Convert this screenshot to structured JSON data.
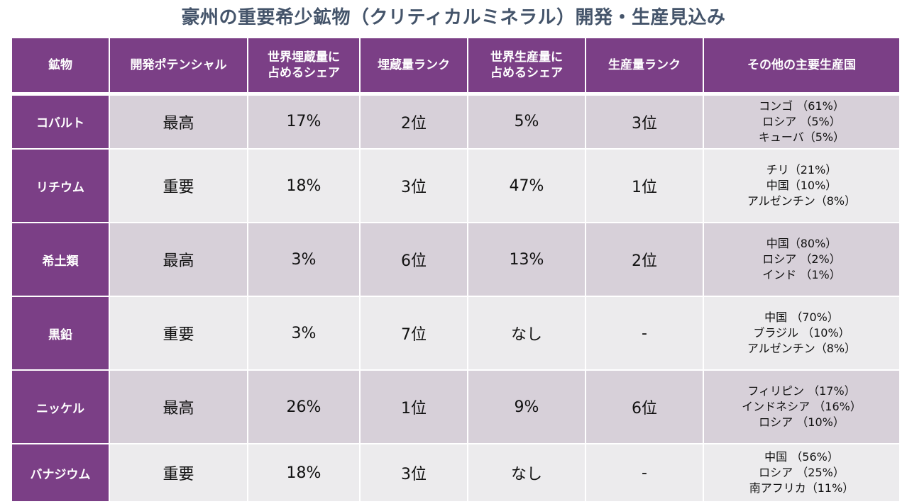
{
  "title": "豪州の重要希少鉱物（クリティカルミネラル）開発・生産見込み",
  "headers": {
    "mineral": "鉱物",
    "potential": "開発ポテンシャル",
    "reserve_share": [
      "世界埋蔵量に",
      "占めるシェア"
    ],
    "reserve_rank": "埋蔵量ランク",
    "production_share": [
      "世界生産量に",
      "占めるシェア"
    ],
    "production_rank": "生産量ランク",
    "others": "その他の主要生産国"
  },
  "rows": [
    {
      "mineral": "コバルト",
      "potential": "最高",
      "reserve_share": "17%",
      "reserve_rank": "2位",
      "production_share": "5%",
      "production_rank": "3位",
      "others": [
        "コンゴ （61%）",
        "ロシア （5%）",
        "キューバ（5%）"
      ]
    },
    {
      "mineral": "リチウム",
      "potential": "重要",
      "reserve_share": "18%",
      "reserve_rank": "3位",
      "production_share": "47%",
      "production_rank": "1位",
      "others": [
        "チリ（21%）",
        "中国（10%）",
        "アルゼンチン（8%）"
      ]
    },
    {
      "mineral": "希土類",
      "potential": "最高",
      "reserve_share": "3%",
      "reserve_rank": "6位",
      "production_share": "13%",
      "production_rank": "2位",
      "others": [
        "中国（80%）",
        "ロシア （2%）",
        "インド （1%）"
      ]
    },
    {
      "mineral": "黒鉛",
      "potential": "重要",
      "reserve_share": "3%",
      "reserve_rank": "7位",
      "production_share": "なし",
      "production_rank": "-",
      "others": [
        "中国 （70%）",
        "ブラジル （10%）",
        "アルゼンチン（8%）"
      ]
    },
    {
      "mineral": "ニッケル",
      "potential": "最高",
      "reserve_share": "26%",
      "reserve_rank": "1位",
      "production_share": "9%",
      "production_rank": "6位",
      "others": [
        "フィリピン （17%）",
        "インドネシア （16%）",
        "ロシア （10%）"
      ]
    },
    {
      "mineral": "バナジウム",
      "potential": "重要",
      "reserve_share": "18%",
      "reserve_rank": "3位",
      "production_share": "なし",
      "production_rank": "-",
      "others": [
        "中国 （56%）",
        "ロシア （25%）",
        "南アフリカ（11%）"
      ]
    }
  ],
  "colors": {
    "title": "#44546a",
    "header_bg": "#7b3f86",
    "row_odd": "#d7d0d9",
    "row_even": "#ecebed"
  }
}
